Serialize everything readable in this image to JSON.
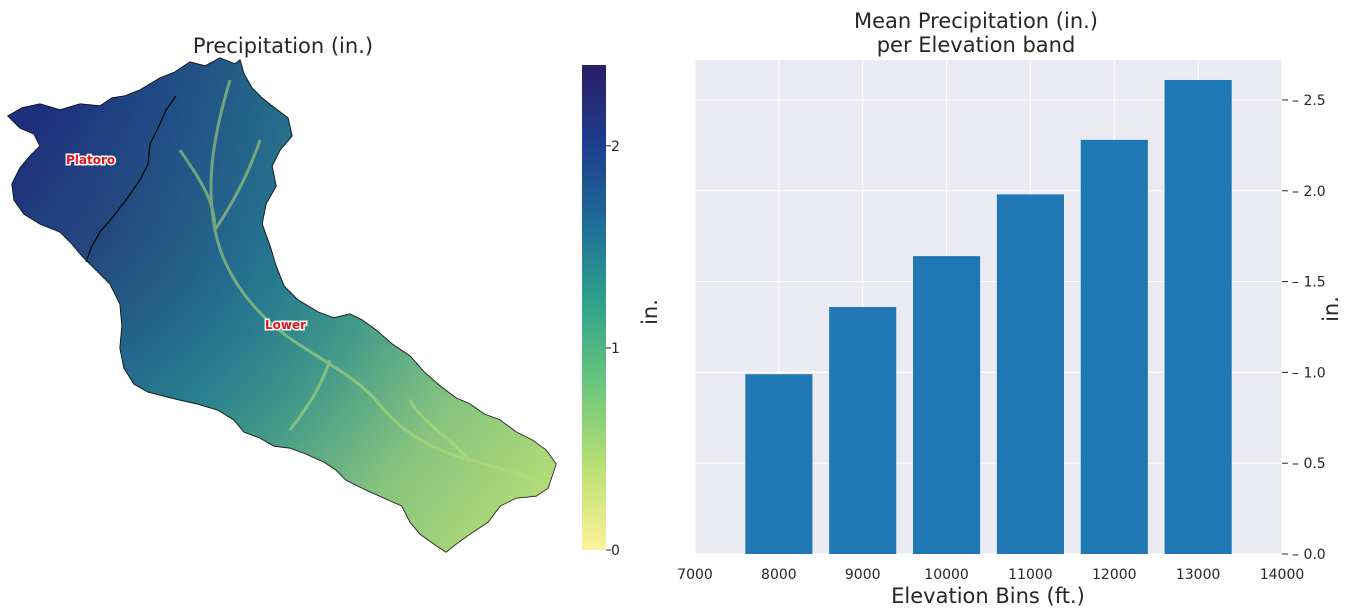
{
  "map_panel": {
    "title": "Precipitation (in.)",
    "basins": [
      {
        "name": "Platoro"
      },
      {
        "name": "Lower"
      }
    ],
    "colorbar": {
      "label": "in.",
      "ticks": [
        "0",
        "1",
        "2"
      ],
      "colormap": [
        "#fdf29a",
        "#bce073",
        "#6ec77c",
        "#33a48a",
        "#1f6f98",
        "#1e3f90",
        "#2a1d67"
      ]
    }
  },
  "chart_data": {
    "type": "bar",
    "title": "Mean Precipitation (in.)\nper Elevation band",
    "title_lines": [
      "Mean Precipitation (in.)",
      "per Elevation band"
    ],
    "xlabel": "Elevation Bins (ft.)",
    "ylabel": "in.",
    "categories": [
      8000,
      9000,
      10000,
      11000,
      12000,
      13000
    ],
    "values": [
      0.99,
      1.36,
      1.64,
      1.98,
      2.28,
      2.61
    ],
    "bar_width": 800,
    "xlim": [
      7000,
      14000
    ],
    "ylim": [
      0,
      2.72
    ],
    "xticks": [
      "7000",
      "8000",
      "9000",
      "10000",
      "11000",
      "12000",
      "13000",
      "14000"
    ],
    "yticks": [
      "0.0",
      "0.5",
      "1.0",
      "1.5",
      "2.0",
      "2.5"
    ],
    "bar_color": "#1f77b4",
    "background": "#eaeaf2",
    "grid": true,
    "y_axis_side": "right"
  }
}
